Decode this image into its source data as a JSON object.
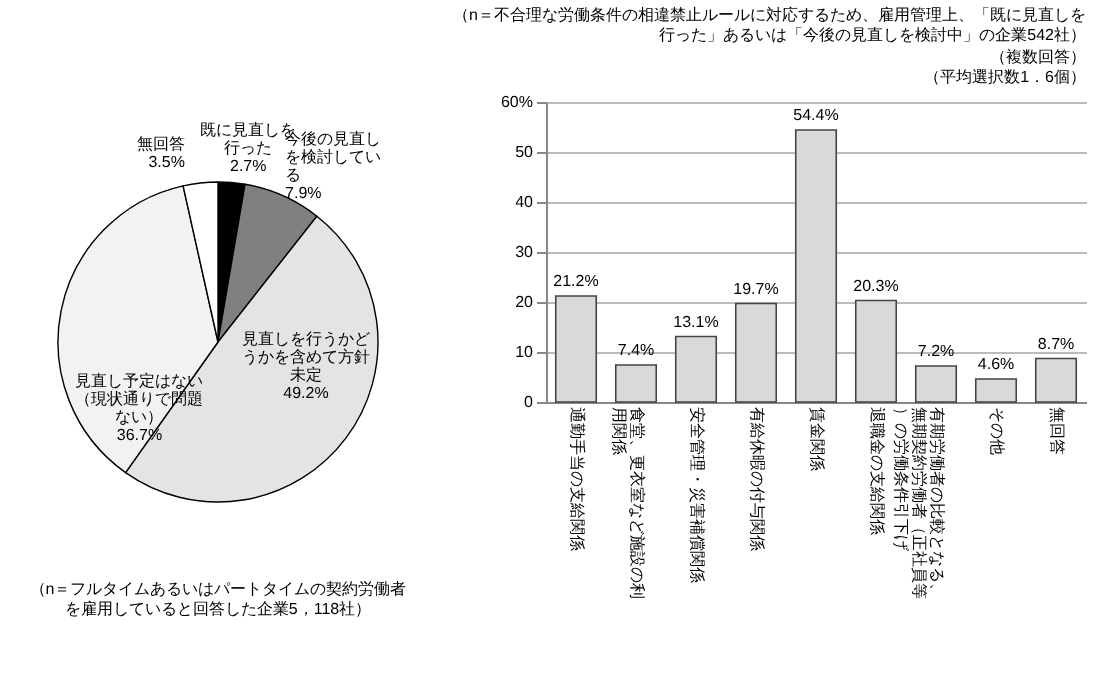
{
  "chart_data": [
    {
      "type": "pie",
      "categories": [
        "既に見直しを行った",
        "今後の見直しを検討している",
        "見直しを行うかどうかを含めて方針未定",
        "見直し予定はない（現状通りで問題ない）",
        "無回答"
      ],
      "values": [
        2.7,
        7.9,
        49.2,
        36.7,
        3.5
      ],
      "value_labels": [
        "2.7%",
        "7.9%",
        "49.2%",
        "36.7%",
        "3.5%"
      ],
      "colors": [
        "#000000",
        "#808080",
        "#e4e4e4",
        "#f2f2f2",
        "#ffffff"
      ],
      "annotations": [
        "（n＝フルタイムあるいはパートタイムの契約労働者を雇用していると回答した企業5，118社）"
      ]
    },
    {
      "type": "bar",
      "title": "（n＝不合理な労働条件の相違禁止ルールに対応するため、雇用管理上、「既に見直しを行った」あるいは「今後の見直しを検討中」の企業542社）",
      "annotations": [
        "（複数回答）",
        "（平均選択数1．6個）"
      ],
      "categories": [
        "通勤手当の支給関係",
        "食堂、更衣室など施設の利用関係",
        "安全管理・災害補償関係",
        "有給休暇の付与関係",
        "賃金関係",
        "退職金の支給関係",
        "有期労働者の比較となる、無期契約労働者（正社員等）の労働条件引下げ",
        "その他",
        "無回答"
      ],
      "values": [
        21.2,
        7.4,
        13.1,
        19.7,
        54.4,
        20.3,
        7.2,
        4.6,
        8.7
      ],
      "value_labels": [
        "21.2%",
        "7.4%",
        "13.1%",
        "19.7%",
        "54.4%",
        "20.3%",
        "7.2%",
        "4.6%",
        "8.7%"
      ],
      "color": "#d9d9d9",
      "ylim": [
        0,
        60
      ],
      "yticks": [
        0,
        10,
        20,
        30,
        40,
        50,
        {
          "value": 60,
          "label": "60%"
        }
      ],
      "grid": "y"
    }
  ]
}
